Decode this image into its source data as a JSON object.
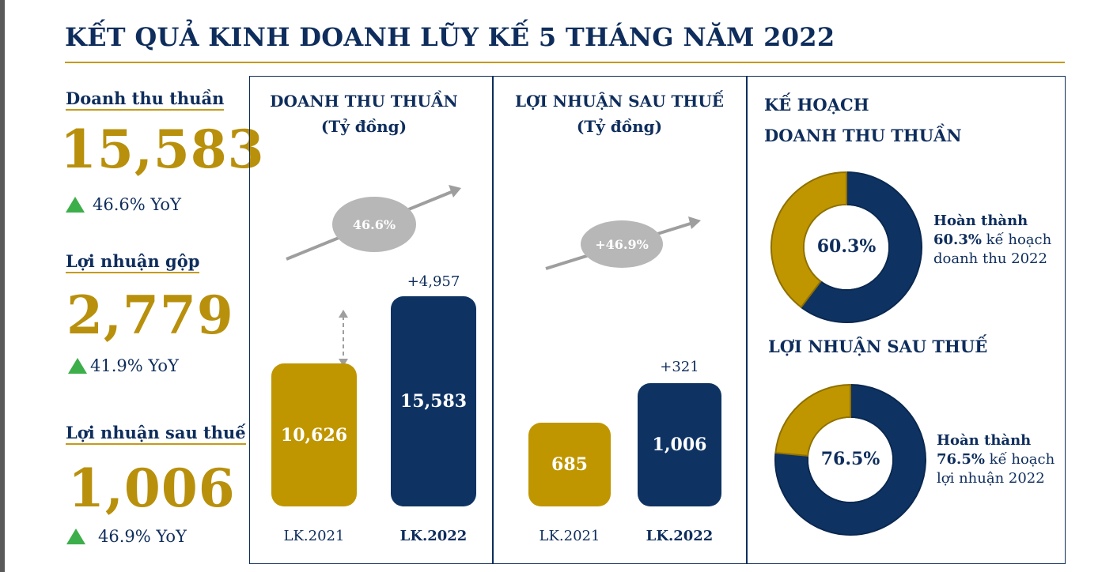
{
  "title": "KẾT QUẢ KINH DOANH LŨY KẾ 5 THÁNG NĂM 2022",
  "colors": {
    "navy": "#0e3363",
    "gold": "#bf9600",
    "green": "#3cae4a",
    "grey": "#b7b7b7"
  },
  "kpis": [
    {
      "label": "Doanh thu thuần",
      "value": "15,583",
      "yoy": "46.6% YoY"
    },
    {
      "label": "Lợi nhuận gộp",
      "value": "2,779",
      "yoy": "41.9% YoY"
    },
    {
      "label": "Lợi nhuận sau thuế",
      "value": "1,006",
      "yoy": "46.9% YoY"
    }
  ],
  "revenue_panel": {
    "title_line1": "DOANH THU THUẦN",
    "title_line2": "(Tỷ đồng)",
    "growth": "46.6%",
    "delta": "+4,957"
  },
  "profit_panel": {
    "title_line1": "LỢI NHUẬN SAU THUẾ",
    "title_line2": "(Tỷ đồng)",
    "growth": "+46.9%",
    "delta": "+321"
  },
  "plan_panel": {
    "title_line1": "KẾ HOẠCH",
    "title_line2": "DOANH THU THUẦN",
    "revenue_center": "60.3%",
    "revenue_note_bold": "Hoàn thành",
    "revenue_note_pct": "60.3%",
    "revenue_note_rest1": " kế hoạch",
    "revenue_note_rest2": "doanh thu 2022",
    "profit_title": "LỢI NHUẬN SAU THUẾ",
    "profit_center": "76.5%",
    "profit_note_bold": "Hoàn thành",
    "profit_note_pct": "76.5%",
    "profit_note_rest1": " kế hoạch",
    "profit_note_rest2": "lợi nhuận 2022"
  },
  "chart_data": [
    {
      "type": "bar",
      "title": "DOANH THU THUẦN (Tỷ đồng)",
      "categories": [
        "LK.2021",
        "LK.2022"
      ],
      "values": [
        10626,
        15583
      ],
      "value_labels": [
        "10,626",
        "15,583"
      ],
      "colors": [
        "#bf9600",
        "#0e3363"
      ],
      "annotations": [
        "+4,957",
        "46.6%"
      ]
    },
    {
      "type": "bar",
      "title": "LỢI NHUẬN SAU THUẾ (Tỷ đồng)",
      "categories": [
        "LK.2021",
        "LK.2022"
      ],
      "values": [
        685,
        1006
      ],
      "value_labels": [
        "685",
        "1,006"
      ],
      "colors": [
        "#bf9600",
        "#0e3363"
      ],
      "annotations": [
        "+321",
        "+46.9%"
      ]
    },
    {
      "type": "pie",
      "title": "KẾ HOẠCH DOANH THU THUẦN",
      "values": [
        60.3,
        39.7
      ],
      "colors": [
        "#0e3363",
        "#bf9600"
      ]
    },
    {
      "type": "pie",
      "title": "LỢI NHUẬN SAU THUẾ",
      "values": [
        76.5,
        23.5
      ],
      "colors": [
        "#0e3363",
        "#bf9600"
      ]
    }
  ]
}
